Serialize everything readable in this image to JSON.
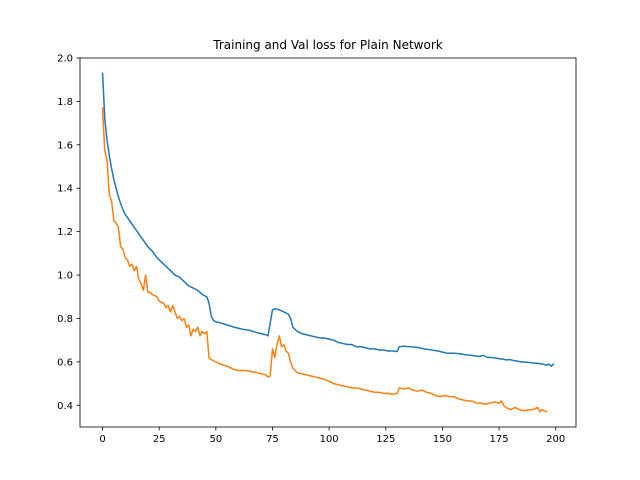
{
  "chart_data": {
    "type": "line",
    "title": "Training and Val loss for Plain Network",
    "xlabel": "",
    "ylabel": "",
    "xlim": [
      -9.95,
      208.95
    ],
    "ylim": [
      0.3,
      2.0
    ],
    "xticks": [
      0,
      25,
      50,
      75,
      100,
      125,
      150,
      175,
      200
    ],
    "yticks": [
      0.4,
      0.6,
      0.8,
      1.0,
      1.2,
      1.4,
      1.6,
      1.8,
      2.0
    ],
    "ytick_labels": [
      "0.4",
      "0.6",
      "0.8",
      "1.0",
      "1.2",
      "1.4",
      "1.6",
      "1.8",
      "2.0"
    ],
    "grid": false,
    "legend": "none",
    "series": [
      {
        "color": "#1f77b4",
        "points": [
          [
            0,
            1.93
          ],
          [
            1,
            1.72
          ],
          [
            2,
            1.62
          ],
          [
            3,
            1.55
          ],
          [
            4,
            1.49
          ],
          [
            5,
            1.44
          ],
          [
            6,
            1.4
          ],
          [
            7,
            1.36
          ],
          [
            8,
            1.33
          ],
          [
            9,
            1.3
          ],
          [
            10,
            1.28
          ],
          [
            12,
            1.25
          ],
          [
            14,
            1.22
          ],
          [
            16,
            1.19
          ],
          [
            18,
            1.16
          ],
          [
            20,
            1.13
          ],
          [
            22,
            1.11
          ],
          [
            24,
            1.08
          ],
          [
            26,
            1.06
          ],
          [
            28,
            1.04
          ],
          [
            30,
            1.02
          ],
          [
            32,
            1.0
          ],
          [
            34,
            0.99
          ],
          [
            36,
            0.97
          ],
          [
            38,
            0.95
          ],
          [
            40,
            0.94
          ],
          [
            42,
            0.93
          ],
          [
            44,
            0.91
          ],
          [
            46,
            0.9
          ],
          [
            47,
            0.87
          ],
          [
            48,
            0.81
          ],
          [
            49,
            0.79
          ],
          [
            50,
            0.785
          ],
          [
            52,
            0.78
          ],
          [
            55,
            0.77
          ],
          [
            58,
            0.76
          ],
          [
            60,
            0.755
          ],
          [
            62,
            0.75
          ],
          [
            65,
            0.745
          ],
          [
            68,
            0.735
          ],
          [
            70,
            0.73
          ],
          [
            72,
            0.725
          ],
          [
            73,
            0.72
          ],
          [
            74,
            0.78
          ],
          [
            75,
            0.84
          ],
          [
            76,
            0.845
          ],
          [
            78,
            0.84
          ],
          [
            80,
            0.83
          ],
          [
            82,
            0.82
          ],
          [
            83,
            0.8
          ],
          [
            84,
            0.76
          ],
          [
            86,
            0.74
          ],
          [
            88,
            0.73
          ],
          [
            90,
            0.725
          ],
          [
            92,
            0.72
          ],
          [
            94,
            0.715
          ],
          [
            96,
            0.71
          ],
          [
            98,
            0.71
          ],
          [
            100,
            0.705
          ],
          [
            102,
            0.7
          ],
          [
            104,
            0.69
          ],
          [
            106,
            0.685
          ],
          [
            108,
            0.68
          ],
          [
            110,
            0.68
          ],
          [
            112,
            0.67
          ],
          [
            114,
            0.67
          ],
          [
            116,
            0.665
          ],
          [
            118,
            0.66
          ],
          [
            120,
            0.66
          ],
          [
            122,
            0.655
          ],
          [
            124,
            0.655
          ],
          [
            126,
            0.65
          ],
          [
            128,
            0.65
          ],
          [
            130,
            0.648
          ],
          [
            131,
            0.67
          ],
          [
            133,
            0.672
          ],
          [
            136,
            0.67
          ],
          [
            139,
            0.667
          ],
          [
            142,
            0.66
          ],
          [
            145,
            0.655
          ],
          [
            148,
            0.65
          ],
          [
            150,
            0.645
          ],
          [
            152,
            0.64
          ],
          [
            155,
            0.64
          ],
          [
            158,
            0.637
          ],
          [
            160,
            0.633
          ],
          [
            163,
            0.63
          ],
          [
            166,
            0.625
          ],
          [
            168,
            0.63
          ],
          [
            170,
            0.62
          ],
          [
            172,
            0.62
          ],
          [
            175,
            0.615
          ],
          [
            178,
            0.61
          ],
          [
            180,
            0.61
          ],
          [
            182,
            0.605
          ],
          [
            185,
            0.6
          ],
          [
            188,
            0.598
          ],
          [
            190,
            0.595
          ],
          [
            192,
            0.593
          ],
          [
            194,
            0.59
          ],
          [
            196,
            0.585
          ],
          [
            197,
            0.59
          ],
          [
            198,
            0.58
          ],
          [
            199,
            0.59
          ]
        ]
      },
      {
        "color": "#ff7f0e",
        "points": [
          [
            0,
            1.77
          ],
          [
            1,
            1.57
          ],
          [
            2,
            1.53
          ],
          [
            3,
            1.37
          ],
          [
            4,
            1.34
          ],
          [
            5,
            1.25
          ],
          [
            6,
            1.24
          ],
          [
            7,
            1.22
          ],
          [
            8,
            1.13
          ],
          [
            9,
            1.12
          ],
          [
            10,
            1.08
          ],
          [
            11,
            1.07
          ],
          [
            12,
            1.04
          ],
          [
            13,
            1.05
          ],
          [
            14,
            1.02
          ],
          [
            15,
            1.04
          ],
          [
            16,
            0.98
          ],
          [
            17,
            0.96
          ],
          [
            18,
            0.93
          ],
          [
            19,
            1.0
          ],
          [
            20,
            0.92
          ],
          [
            21,
            0.92
          ],
          [
            22,
            0.91
          ],
          [
            24,
            0.9
          ],
          [
            25,
            0.88
          ],
          [
            27,
            0.87
          ],
          [
            28,
            0.85
          ],
          [
            29,
            0.86
          ],
          [
            30,
            0.83
          ],
          [
            31,
            0.86
          ],
          [
            32,
            0.83
          ],
          [
            33,
            0.8
          ],
          [
            34,
            0.81
          ],
          [
            35,
            0.79
          ],
          [
            36,
            0.8
          ],
          [
            37,
            0.76
          ],
          [
            38,
            0.77
          ],
          [
            39,
            0.72
          ],
          [
            40,
            0.75
          ],
          [
            41,
            0.74
          ],
          [
            42,
            0.76
          ],
          [
            43,
            0.72
          ],
          [
            44,
            0.74
          ],
          [
            45,
            0.73
          ],
          [
            46,
            0.74
          ],
          [
            47,
            0.62
          ],
          [
            48,
            0.61
          ],
          [
            50,
            0.6
          ],
          [
            52,
            0.59
          ],
          [
            55,
            0.58
          ],
          [
            58,
            0.565
          ],
          [
            60,
            0.56
          ],
          [
            63,
            0.56
          ],
          [
            66,
            0.555
          ],
          [
            70,
            0.545
          ],
          [
            72,
            0.54
          ],
          [
            73,
            0.53
          ],
          [
            74,
            0.535
          ],
          [
            75,
            0.66
          ],
          [
            76,
            0.62
          ],
          [
            77,
            0.68
          ],
          [
            78,
            0.72
          ],
          [
            79,
            0.67
          ],
          [
            80,
            0.68
          ],
          [
            81,
            0.65
          ],
          [
            82,
            0.64
          ],
          [
            83,
            0.6
          ],
          [
            84,
            0.57
          ],
          [
            86,
            0.55
          ],
          [
            88,
            0.545
          ],
          [
            90,
            0.54
          ],
          [
            92,
            0.535
          ],
          [
            94,
            0.53
          ],
          [
            96,
            0.525
          ],
          [
            98,
            0.52
          ],
          [
            100,
            0.51
          ],
          [
            102,
            0.5
          ],
          [
            104,
            0.495
          ],
          [
            106,
            0.49
          ],
          [
            108,
            0.485
          ],
          [
            110,
            0.48
          ],
          [
            112,
            0.48
          ],
          [
            114,
            0.475
          ],
          [
            116,
            0.47
          ],
          [
            118,
            0.465
          ],
          [
            120,
            0.46
          ],
          [
            122,
            0.46
          ],
          [
            124,
            0.455
          ],
          [
            126,
            0.455
          ],
          [
            128,
            0.45
          ],
          [
            130,
            0.455
          ],
          [
            131,
            0.48
          ],
          [
            133,
            0.475
          ],
          [
            135,
            0.48
          ],
          [
            137,
            0.47
          ],
          [
            139,
            0.465
          ],
          [
            141,
            0.47
          ],
          [
            143,
            0.46
          ],
          [
            145,
            0.455
          ],
          [
            147,
            0.445
          ],
          [
            149,
            0.44
          ],
          [
            151,
            0.445
          ],
          [
            153,
            0.44
          ],
          [
            155,
            0.44
          ],
          [
            157,
            0.43
          ],
          [
            159,
            0.425
          ],
          [
            161,
            0.42
          ],
          [
            163,
            0.42
          ],
          [
            165,
            0.41
          ],
          [
            167,
            0.41
          ],
          [
            169,
            0.405
          ],
          [
            171,
            0.41
          ],
          [
            173,
            0.415
          ],
          [
            175,
            0.41
          ],
          [
            176,
            0.42
          ],
          [
            177,
            0.4
          ],
          [
            178,
            0.39
          ],
          [
            180,
            0.38
          ],
          [
            182,
            0.39
          ],
          [
            184,
            0.38
          ],
          [
            186,
            0.375
          ],
          [
            188,
            0.38
          ],
          [
            190,
            0.38
          ],
          [
            192,
            0.39
          ],
          [
            193,
            0.37
          ],
          [
            194,
            0.38
          ],
          [
            196,
            0.37
          ]
        ]
      }
    ]
  }
}
